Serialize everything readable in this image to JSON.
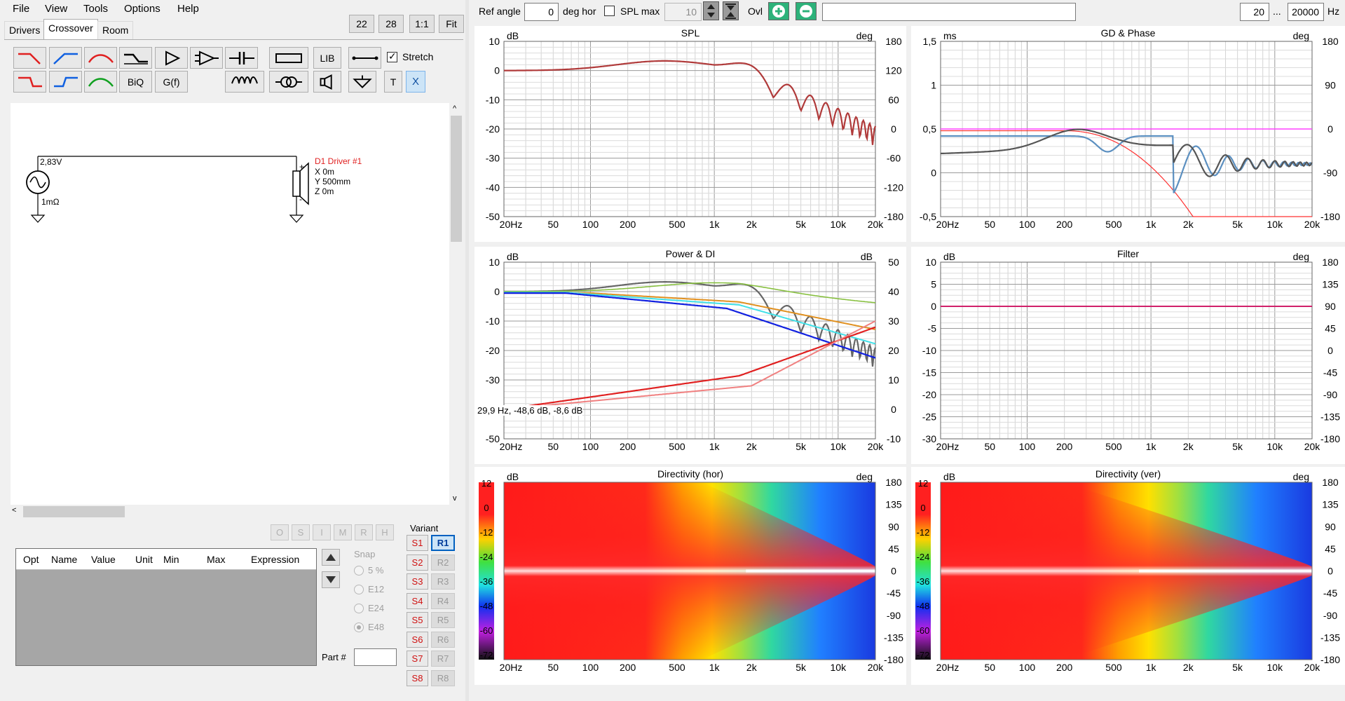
{
  "menu": [
    "File",
    "View",
    "Tools",
    "Options",
    "Help"
  ],
  "zoom_buttons": [
    "22",
    "28",
    "1:1",
    "Fit"
  ],
  "tabs": [
    "Drivers",
    "Crossover",
    "Room"
  ],
  "palette": {
    "lib": "LIB",
    "biq": "BiQ",
    "gf": "G(f)",
    "t": "T",
    "x": "X",
    "stretch": "Stretch"
  },
  "schematic": {
    "source_voltage": "2,83V",
    "source_impedance": "1mΩ",
    "driver_name": "D1 Driver #1",
    "driver_x": "X 0m",
    "driver_y": "Y 500mm",
    "driver_z": "Z 0m",
    "plus": "+",
    "minus": "-"
  },
  "opt_buttons": [
    "O",
    "S",
    "I",
    "M",
    "R",
    "H"
  ],
  "opt_table_headers": [
    "Opt",
    "Name",
    "Value",
    "Unit",
    "Min",
    "Max",
    "Expression"
  ],
  "snap": {
    "label": "Snap",
    "options": [
      "5 %",
      "E12",
      "E24",
      "E48"
    ],
    "selected": "E48"
  },
  "part_label": "Part #",
  "variant": {
    "label": "Variant",
    "s": [
      "S1",
      "S2",
      "S3",
      "S4",
      "S5",
      "S6",
      "S7",
      "S8"
    ],
    "r": [
      "R1",
      "R2",
      "R3",
      "R4",
      "R5",
      "R6",
      "R7",
      "R8"
    ],
    "selected": "R1"
  },
  "topbar": {
    "ref_angle_label": "Ref angle",
    "ref_angle_value": "0",
    "deg_hor": "deg hor",
    "spl_max_label": "SPL max",
    "spl_max_value": "10",
    "ovl_label": "Ovl",
    "freq_min": "20",
    "dots": "...",
    "freq_max": "20000",
    "hz": "Hz"
  },
  "x_ticks": [
    "20Hz",
    "50",
    "100",
    "200",
    "500",
    "1k",
    "2k",
    "5k",
    "10k",
    "20k"
  ],
  "plots": {
    "spl": {
      "title": "SPL",
      "unit_left": "dB",
      "unit_right": "deg",
      "left_ticks": [
        "10",
        "0",
        "-10",
        "-20",
        "-30",
        "-40",
        "-50"
      ],
      "right_ticks": [
        "180",
        "120",
        "60",
        "0",
        "-60",
        "-120",
        "-180"
      ]
    },
    "gd": {
      "title": "GD & Phase",
      "unit_left": "ms",
      "unit_right": "deg",
      "left_ticks": [
        "1,5",
        "1",
        "0,5",
        "0",
        "-0,5"
      ],
      "right_ticks": [
        "180",
        "90",
        "0",
        "-90",
        "-180"
      ]
    },
    "power": {
      "title": "Power & DI",
      "unit_left": "dB",
      "unit_right": "dB",
      "left_ticks": [
        "10",
        "0",
        "-10",
        "-20",
        "-30",
        "-40",
        "-50"
      ],
      "right_ticks": [
        "50",
        "40",
        "30",
        "20",
        "10",
        "0",
        "-10"
      ],
      "cursor_readout": "29,9 Hz, -48,6 dB, -8,6 dB"
    },
    "filter": {
      "title": "Filter",
      "unit_left": "dB",
      "unit_right": "deg",
      "left_ticks": [
        "10",
        "5",
        "0",
        "-5",
        "-10",
        "-15",
        "-20",
        "-25",
        "-30"
      ],
      "right_ticks": [
        "180",
        "135",
        "90",
        "45",
        "0",
        "-45",
        "-90",
        "-135",
        "-180"
      ]
    },
    "dir_hor": {
      "title": "Directivity (hor)",
      "unit_left": "dB",
      "unit_right": "deg",
      "scale_ticks": [
        "12",
        "0",
        "-12",
        "-24",
        "-36",
        "-48",
        "-60",
        "-72"
      ],
      "right_ticks": [
        "180",
        "135",
        "90",
        "45",
        "0",
        "-45",
        "-90",
        "-135",
        "-180"
      ]
    },
    "dir_ver": {
      "title": "Directivity (ver)",
      "unit_left": "dB",
      "unit_right": "deg",
      "scale_ticks": [
        "12",
        "0",
        "-12",
        "-24",
        "-36",
        "-48",
        "-60",
        "-72"
      ],
      "right_ticks": [
        "180",
        "135",
        "90",
        "45",
        "0",
        "-45",
        "-90",
        "-135",
        "-180"
      ]
    }
  },
  "colors": {
    "spl_curve": "#b03a3a",
    "phase": "#ff3030",
    "gd_blue": "#5b8fc0",
    "gd_gray": "#555555",
    "magenta": "#ff40ff",
    "filter_line": "#d0206a"
  }
}
